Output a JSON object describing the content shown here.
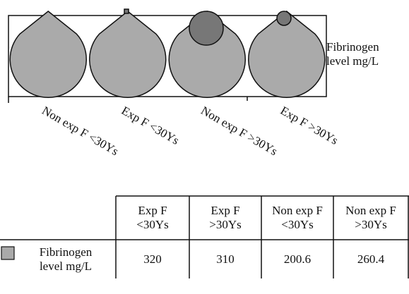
{
  "chart_data": {
    "type": "shape",
    "categories": [
      "Non exp F <30Ys",
      "Exp F <30Ys",
      "Non exp F >30Ys",
      "Exp F >30Ys"
    ],
    "series": [
      {
        "name": "Fibrinogen level mg/L",
        "color": "#aaaaaa",
        "values": [
          200.6,
          320,
          260.4,
          310
        ]
      }
    ],
    "data_table": {
      "columns": [
        "Exp F <30Ys",
        "Exp F >30Ys",
        "Non exp F <30Ys",
        "Non exp F >30Ys"
      ],
      "row_label": "Fibrinogen level mg/L",
      "values": [
        320,
        310,
        200.6,
        260.4
      ]
    }
  }
}
